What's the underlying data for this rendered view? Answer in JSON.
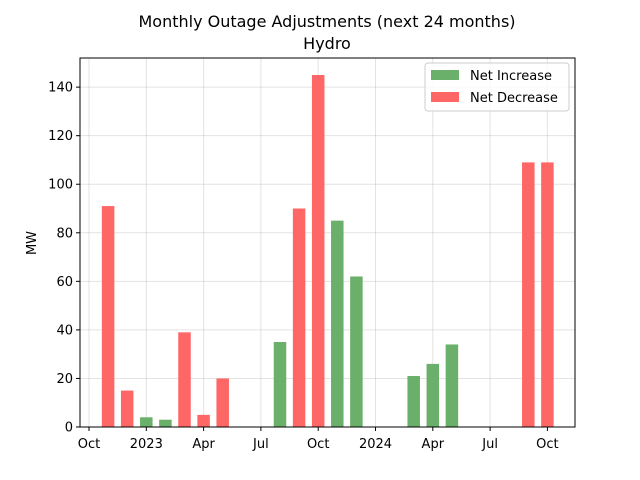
{
  "chart_data": {
    "type": "bar",
    "title": "Monthly Outage Adjustments (next 24 months)",
    "subtitle": "Hydro",
    "xlabel": "",
    "ylabel": "MW",
    "ylim": [
      0,
      152
    ],
    "y_ticks": [
      0,
      20,
      40,
      60,
      80,
      100,
      120,
      140
    ],
    "x_ticks": [
      {
        "date": "2022-10",
        "label": "Oct"
      },
      {
        "date": "2023-01",
        "label": "2023"
      },
      {
        "date": "2023-04",
        "label": "Apr"
      },
      {
        "date": "2023-07",
        "label": "Jul"
      },
      {
        "date": "2023-10",
        "label": "Oct"
      },
      {
        "date": "2024-01",
        "label": "2024"
      },
      {
        "date": "2024-04",
        "label": "Apr"
      },
      {
        "date": "2024-07",
        "label": "Jul"
      },
      {
        "date": "2024-10",
        "label": "Oct"
      }
    ],
    "grid": true,
    "legend_position": "top-right",
    "categories": [
      "2022-11",
      "2022-12",
      "2023-01",
      "2023-02",
      "2023-03",
      "2023-04",
      "2023-05",
      "2023-06",
      "2023-07",
      "2023-08",
      "2023-09",
      "2023-10",
      "2023-11",
      "2023-12",
      "2024-01",
      "2024-02",
      "2024-03",
      "2024-04",
      "2024-05",
      "2024-06",
      "2024-07",
      "2024-08",
      "2024-09",
      "2024-10"
    ],
    "series": [
      {
        "name": "Net Increase",
        "color": "#6ab06a",
        "values": [
          0,
          0,
          4,
          3,
          0,
          0,
          0,
          0,
          0,
          35,
          0,
          0,
          85,
          62,
          0,
          0,
          21,
          26,
          34,
          0,
          0,
          0,
          0,
          0
        ]
      },
      {
        "name": "Net Decrease",
        "color": "#ff6666",
        "values": [
          91,
          15,
          0,
          0,
          39,
          5,
          20,
          0,
          0,
          0,
          90,
          145,
          0,
          0,
          0,
          0,
          0,
          0,
          0,
          0,
          0,
          0,
          109,
          109
        ]
      }
    ]
  }
}
